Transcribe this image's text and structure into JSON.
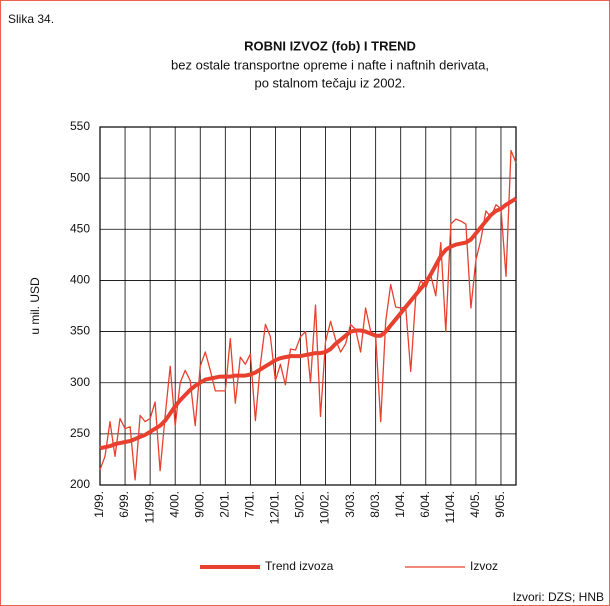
{
  "chart_data": {
    "type": "line",
    "label": "Slika 34.",
    "title": "ROBNI IZVOZ (fob) I TREND",
    "subtitle": [
      "bez ostale transportne opreme i nafte i naftnih derivata,",
      "po stalnom tečaju iz 2002."
    ],
    "ylabel": "u mil. USD",
    "source": "Izvori: DZS; HNB",
    "legend": "bottom",
    "grid": true,
    "ylim": [
      200,
      550
    ],
    "yticks": [
      200,
      250,
      300,
      350,
      400,
      450,
      500,
      550
    ],
    "categories": [
      "1/99.",
      null,
      null,
      null,
      null,
      "6/99.",
      null,
      null,
      null,
      null,
      "11/99.",
      null,
      null,
      null,
      null,
      "4/00.",
      null,
      null,
      null,
      null,
      "9/00.",
      null,
      null,
      null,
      null,
      "2/01.",
      null,
      null,
      null,
      null,
      "7/01.",
      null,
      null,
      null,
      null,
      "12/01.",
      null,
      null,
      null,
      null,
      "5/02.",
      null,
      null,
      null,
      null,
      "10/02.",
      null,
      null,
      null,
      null,
      "3/03.",
      null,
      null,
      null,
      null,
      "8/03.",
      null,
      null,
      null,
      null,
      "1/04.",
      null,
      null,
      null,
      null,
      "6/04.",
      null,
      null,
      null,
      null,
      "11/04.",
      null,
      null,
      null,
      null,
      "4/05.",
      null,
      null,
      null,
      null,
      "9/05.",
      null,
      null,
      null
    ],
    "series": [
      {
        "name": "Trend izvoza",
        "color": "#e8402e",
        "width": 4,
        "values": [
          236,
          237,
          238,
          240,
          241,
          242,
          243,
          245,
          247,
          249,
          252,
          255,
          258,
          263,
          270,
          277,
          283,
          288,
          293,
          297,
          300,
          303,
          304,
          305,
          306,
          306,
          306,
          307,
          307,
          307,
          308,
          310,
          313,
          316,
          319,
          322,
          324,
          325,
          326,
          326,
          326,
          327,
          328,
          329,
          329,
          330,
          333,
          338,
          342,
          346,
          350,
          351,
          351,
          350,
          348,
          346,
          346,
          350,
          356,
          362,
          368,
          374,
          380,
          386,
          392,
          398,
          406,
          415,
          424,
          430,
          433,
          435,
          436,
          437,
          440,
          446,
          452,
          458,
          464,
          468,
          470,
          474,
          477,
          480
        ]
      },
      {
        "name": "Izvoz",
        "color": "#e8402e",
        "width": 1.3,
        "values": [
          215,
          228,
          262,
          228,
          265,
          255,
          257,
          205,
          268,
          262,
          265,
          281,
          214,
          268,
          316,
          258,
          300,
          312,
          302,
          258,
          316,
          330,
          312,
          292,
          292,
          292,
          343,
          280,
          325,
          318,
          328,
          263,
          318,
          357,
          345,
          302,
          318,
          298,
          333,
          332,
          345,
          350,
          300,
          376,
          267,
          340,
          360,
          342,
          330,
          338,
          357,
          352,
          330,
          373,
          350,
          345,
          262,
          360,
          396,
          374,
          373,
          374,
          311,
          385,
          400,
          393,
          405,
          385,
          437,
          350,
          455,
          460,
          458,
          455,
          373,
          420,
          440,
          468,
          462,
          474,
          470,
          404,
          527,
          515
        ]
      }
    ]
  }
}
